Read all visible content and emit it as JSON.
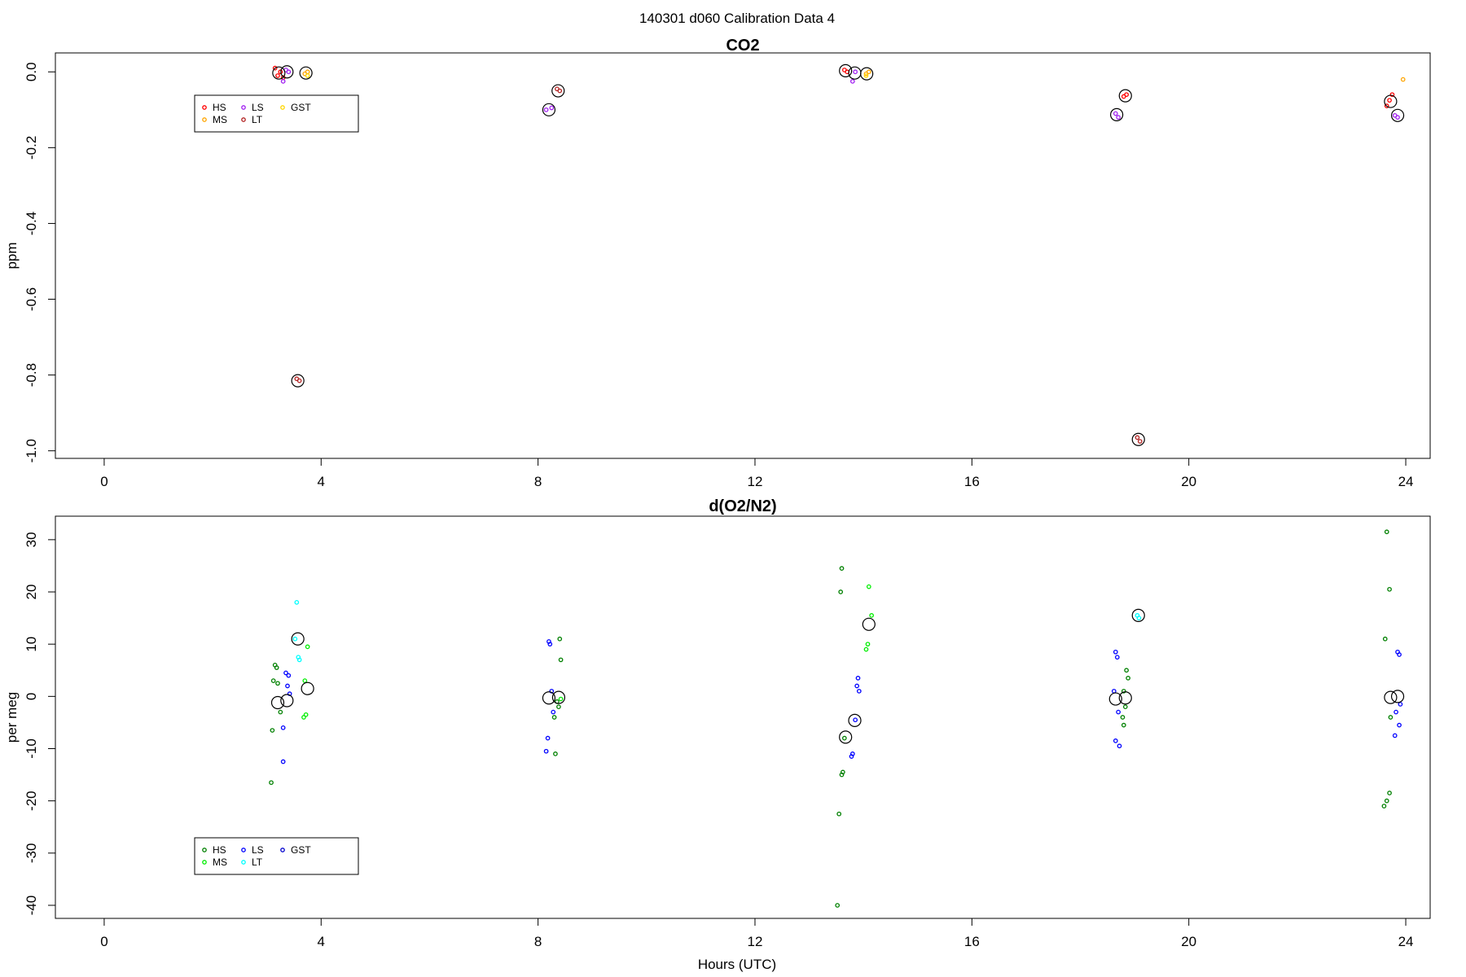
{
  "page_title": "140301   d060   Calibration Data 4",
  "xlabel": "Hours (UTC)",
  "colors": {
    "HS_co2": "#ff0000",
    "MS_co2": "#ffa500",
    "LS_co2": "#a020f0",
    "LT_co2": "#b22222",
    "GST_co2": "#ffd700",
    "HS_o2": "#008000",
    "MS_o2": "#00ee00",
    "LS_o2": "#0000ff",
    "LT_o2": "#00ffff",
    "GST_o2": "#0000cd",
    "mean": "#000000"
  },
  "chart_data": [
    {
      "type": "scatter",
      "title": "CO2",
      "ylabel": "ppm",
      "xlim": [
        -0.9,
        24.45
      ],
      "ylim": [
        -1.02,
        0.05
      ],
      "xticks": [
        0,
        4,
        8,
        12,
        16,
        20,
        24
      ],
      "yticks": [
        0.0,
        -0.2,
        -0.4,
        -0.6,
        -0.8,
        -1.0
      ],
      "ytick_labels": [
        "0.0",
        "-0.2",
        "-0.4",
        "-0.6",
        "-0.8",
        "-1.0"
      ],
      "legend_position": "top-left",
      "legend": [
        {
          "label": "HS",
          "color": "#ff0000"
        },
        {
          "label": "MS",
          "color": "#ffa500"
        },
        {
          "label": "LS",
          "color": "#a020f0"
        },
        {
          "label": "LT",
          "color": "#b22222"
        },
        {
          "label": "GST",
          "color": "#ffd700"
        }
      ],
      "series": [
        {
          "name": "HS",
          "color": "#ff0000",
          "points": [
            [
              3.15,
              0.01
            ],
            [
              3.2,
              -0.01
            ],
            [
              3.25,
              0.0
            ],
            [
              3.3,
              -0.015
            ],
            [
              13.65,
              0.005
            ],
            [
              13.7,
              0.0
            ],
            [
              18.8,
              -0.065
            ],
            [
              18.85,
              -0.06
            ],
            [
              23.65,
              -0.09
            ],
            [
              23.75,
              -0.06
            ],
            [
              23.7,
              -0.075
            ]
          ]
        },
        {
          "name": "MS",
          "color": "#ffa500",
          "points": [
            [
              3.7,
              -0.005
            ],
            [
              3.75,
              0.0
            ],
            [
              14.05,
              -0.005
            ],
            [
              14.1,
              0.0
            ],
            [
              23.95,
              -0.02
            ]
          ]
        },
        {
          "name": "LS",
          "color": "#a020f0",
          "points": [
            [
              3.35,
              0.005
            ],
            [
              3.4,
              0.0
            ],
            [
              3.3,
              -0.025
            ],
            [
              8.15,
              -0.1
            ],
            [
              8.25,
              -0.095
            ],
            [
              13.85,
              0.0
            ],
            [
              13.8,
              -0.025
            ],
            [
              18.65,
              -0.11
            ],
            [
              18.7,
              -0.12
            ],
            [
              23.8,
              -0.115
            ],
            [
              23.85,
              -0.12
            ]
          ]
        },
        {
          "name": "LT",
          "color": "#b22222",
          "points": [
            [
              3.55,
              -0.81
            ],
            [
              3.6,
              -0.815
            ],
            [
              8.35,
              -0.045
            ],
            [
              8.4,
              -0.05
            ],
            [
              19.05,
              -0.965
            ],
            [
              19.1,
              -0.975
            ]
          ]
        },
        {
          "name": "GST",
          "color": "#ffd700",
          "points": [
            [
              3.75,
              -0.01
            ],
            [
              14.05,
              -0.01
            ]
          ]
        },
        {
          "name": "mean",
          "color": "#000000",
          "large": true,
          "points": [
            [
              3.22,
              -0.003
            ],
            [
              3.37,
              0.0
            ],
            [
              3.57,
              -0.815
            ],
            [
              3.72,
              -0.003
            ],
            [
              8.2,
              -0.1
            ],
            [
              8.37,
              -0.05
            ],
            [
              13.67,
              0.003
            ],
            [
              13.84,
              -0.003
            ],
            [
              14.06,
              -0.005
            ],
            [
              18.67,
              -0.113
            ],
            [
              18.83,
              -0.063
            ],
            [
              19.07,
              -0.97
            ],
            [
              23.72,
              -0.078
            ],
            [
              23.85,
              -0.115
            ]
          ]
        }
      ]
    },
    {
      "type": "scatter",
      "title": "d(O2/N2)",
      "ylabel": "per meg",
      "xlim": [
        -0.9,
        24.45
      ],
      "ylim": [
        -42.5,
        34.5
      ],
      "xticks": [
        0,
        4,
        8,
        12,
        16,
        20,
        24
      ],
      "yticks": [
        30,
        20,
        10,
        0,
        -10,
        -20,
        -30,
        -40
      ],
      "ytick_labels": [
        "30",
        "20",
        "10",
        "0",
        "-10",
        "-20",
        "-30",
        "-40"
      ],
      "legend_position": "bottom-left",
      "legend": [
        {
          "label": "HS",
          "color": "#008000"
        },
        {
          "label": "MS",
          "color": "#00ee00"
        },
        {
          "label": "LS",
          "color": "#0000ff"
        },
        {
          "label": "LT",
          "color": "#00ffff"
        },
        {
          "label": "GST",
          "color": "#0000cd"
        }
      ],
      "series": [
        {
          "name": "HS",
          "color": "#008000",
          "points": [
            [
              3.15,
              6
            ],
            [
              3.18,
              5.5
            ],
            [
              3.12,
              3
            ],
            [
              3.2,
              2.5
            ],
            [
              3.25,
              -3
            ],
            [
              3.1,
              -6.5
            ],
            [
              3.08,
              -16.5
            ],
            [
              13.6,
              24.5
            ],
            [
              13.58,
              20
            ],
            [
              13.65,
              -8
            ],
            [
              13.62,
              -14.5
            ],
            [
              13.6,
              -15
            ],
            [
              13.55,
              -22.5
            ],
            [
              13.52,
              -40
            ],
            [
              18.85,
              5
            ],
            [
              18.88,
              3.5
            ],
            [
              18.8,
              1
            ],
            [
              18.83,
              -2
            ],
            [
              18.78,
              -4
            ],
            [
              18.8,
              -5.5
            ],
            [
              23.65,
              31.5
            ],
            [
              23.7,
              20.5
            ],
            [
              23.62,
              11
            ],
            [
              23.72,
              -4
            ],
            [
              23.7,
              -18.5
            ],
            [
              23.65,
              -20
            ],
            [
              23.6,
              -21
            ],
            [
              8.4,
              11
            ],
            [
              8.42,
              7
            ],
            [
              8.35,
              -1
            ],
            [
              8.38,
              -2
            ],
            [
              8.3,
              -4
            ],
            [
              8.32,
              -11
            ]
          ]
        },
        {
          "name": "MS",
          "color": "#00ee00",
          "points": [
            [
              3.75,
              9.5
            ],
            [
              3.7,
              3
            ],
            [
              3.72,
              -3.5
            ],
            [
              3.68,
              -4
            ],
            [
              14.1,
              21
            ],
            [
              14.15,
              15.5
            ],
            [
              14.08,
              10
            ],
            [
              14.05,
              9
            ],
            [
              8.42,
              -0.5
            ]
          ]
        },
        {
          "name": "LS",
          "color": "#0000ff",
          "points": [
            [
              3.35,
              4.5
            ],
            [
              3.4,
              4
            ],
            [
              3.38,
              2
            ],
            [
              3.42,
              0.5
            ],
            [
              3.3,
              -6
            ],
            [
              3.3,
              -12.5
            ],
            [
              8.2,
              10.5
            ],
            [
              8.22,
              10
            ],
            [
              8.25,
              1
            ],
            [
              8.28,
              -3
            ],
            [
              8.18,
              -8
            ],
            [
              8.15,
              -10.5
            ],
            [
              13.9,
              3.5
            ],
            [
              13.88,
              2
            ],
            [
              13.92,
              1
            ],
            [
              13.85,
              -4.5
            ],
            [
              13.8,
              -11
            ],
            [
              13.78,
              -11.5
            ],
            [
              18.65,
              8.5
            ],
            [
              18.68,
              7.5
            ],
            [
              18.62,
              1
            ],
            [
              18.7,
              -3
            ],
            [
              18.65,
              -8.5
            ],
            [
              18.72,
              -9.5
            ],
            [
              23.85,
              8.5
            ],
            [
              23.88,
              8
            ],
            [
              23.9,
              -1.5
            ],
            [
              23.82,
              -3
            ],
            [
              23.88,
              -5.5
            ],
            [
              23.8,
              -7.5
            ]
          ]
        },
        {
          "name": "LT",
          "color": "#00ffff",
          "points": [
            [
              3.55,
              18
            ],
            [
              3.58,
              7.5
            ],
            [
              3.6,
              7
            ],
            [
              3.52,
              11
            ],
            [
              19.05,
              15.5
            ],
            [
              19.08,
              15
            ]
          ]
        },
        {
          "name": "GST",
          "color": "#0000cd",
          "points": []
        },
        {
          "name": "mean",
          "color": "#000000",
          "large": true,
          "points": [
            [
              3.2,
              -1.2
            ],
            [
              3.37,
              -0.8
            ],
            [
              3.57,
              11
            ],
            [
              3.75,
              1.5
            ],
            [
              8.2,
              -0.3
            ],
            [
              8.38,
              -0.2
            ],
            [
              13.67,
              -7.8
            ],
            [
              13.84,
              -4.6
            ],
            [
              14.1,
              13.8
            ],
            [
              18.65,
              -0.5
            ],
            [
              18.83,
              -0.3
            ],
            [
              19.07,
              15.5
            ],
            [
              23.72,
              -0.2
            ],
            [
              23.85,
              0
            ]
          ]
        }
      ]
    }
  ]
}
